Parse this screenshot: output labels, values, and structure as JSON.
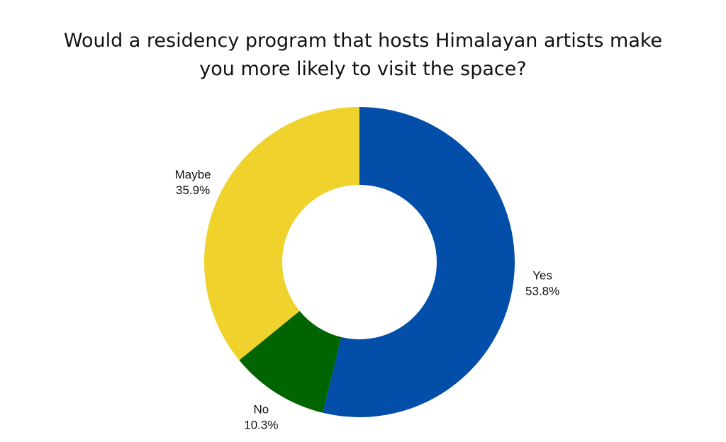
{
  "chart_data": {
    "type": "donut",
    "title": "Would a residency program that hosts Himalayan artists make you more likely to visit the space?",
    "categories": [
      "Yes",
      "No",
      "Maybe"
    ],
    "values": [
      53.8,
      10.3,
      35.9
    ],
    "value_labels": [
      "53.8%",
      "10.3%",
      "35.9%"
    ],
    "colors": [
      "#034ea8",
      "#006400",
      "#f0d22d"
    ]
  }
}
